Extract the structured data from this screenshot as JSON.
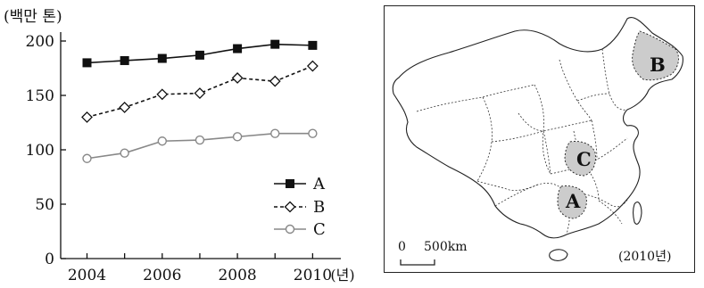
{
  "chart_data": {
    "type": "line",
    "unit_label": "(백만 톤)",
    "x": [
      2004,
      2005,
      2006,
      2007,
      2008,
      2009,
      2010
    ],
    "x_ticks": [
      "2004",
      "2006",
      "2008",
      "2010"
    ],
    "x_unit": "(년)",
    "ylim": [
      0,
      200
    ],
    "y_ticks": [
      "0",
      "50",
      "100",
      "150",
      "200"
    ],
    "grid": false,
    "legend_position": "lower-right",
    "series": [
      {
        "name": "A",
        "values": [
          180,
          182,
          184,
          187,
          193,
          197,
          196
        ],
        "marker": "square-filled",
        "line": "solid",
        "color": "#111111"
      },
      {
        "name": "B",
        "values": [
          130,
          139,
          151,
          152,
          166,
          163,
          177
        ],
        "marker": "diamond-open",
        "line": "dashed",
        "color": "#111111"
      },
      {
        "name": "C",
        "values": [
          92,
          97,
          108,
          109,
          112,
          115,
          115
        ],
        "marker": "circle-open",
        "line": "solid",
        "color": "#888888"
      }
    ]
  },
  "map": {
    "scale_zero": "0",
    "scale_distance": "500km",
    "year_note": "(2010년)",
    "regions": [
      {
        "name": "A",
        "color": "#cccccc"
      },
      {
        "name": "B",
        "color": "#cccccc"
      },
      {
        "name": "C",
        "color": "#cccccc"
      }
    ]
  }
}
